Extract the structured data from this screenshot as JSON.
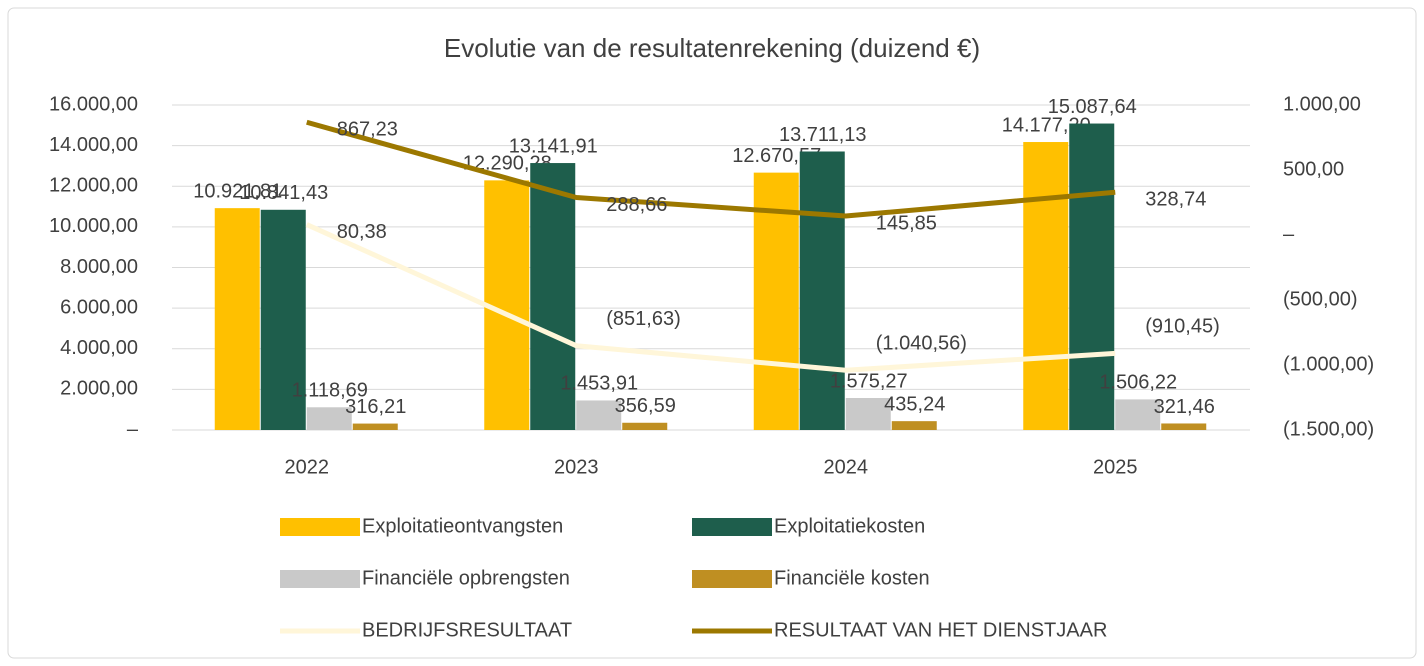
{
  "chart_data": {
    "type": "bar",
    "title": "Evolutie van de resultatenrekening (duizend €)",
    "categories": [
      "2022",
      "2023",
      "2024",
      "2025"
    ],
    "series": [
      {
        "name": "Exploitatieontvangsten",
        "type": "bar",
        "color": "#FFC000",
        "values": [
          10921.81,
          12290.28,
          12670.57,
          14177.2
        ],
        "value_labels": [
          "10.921,81",
          "12.290,28",
          "12.670,57",
          "14.177,20"
        ]
      },
      {
        "name": "Exploitatiekosten",
        "type": "bar",
        "color": "#1E5E4C",
        "values": [
          10841.43,
          13141.91,
          13711.13,
          15087.64
        ],
        "value_labels": [
          "10.841,43",
          "13.141,91",
          "13.711,13",
          "15.087,64"
        ]
      },
      {
        "name": "Financiële opbrengsten",
        "type": "bar",
        "color": "#C9C9C9",
        "values": [
          1118.69,
          1453.91,
          1575.27,
          1506.22
        ],
        "value_labels": [
          "1.118,69",
          "1.453,91",
          "1.575,27",
          "1.506,22"
        ]
      },
      {
        "name": "Financiële kosten",
        "type": "bar",
        "color": "#BF8F22",
        "values": [
          316.21,
          356.59,
          435.24,
          321.46
        ],
        "value_labels": [
          "316,21",
          "356,59",
          "435,24",
          "321,46"
        ]
      },
      {
        "name": "BEDRIJFSRESULTAAT",
        "type": "line",
        "axis": "y2",
        "color": "#FFF6D9",
        "values": [
          80.38,
          -851.63,
          -1040.56,
          -910.45
        ],
        "value_labels": [
          "80,38",
          "(851,63)",
          "(1.040,56)",
          "(910,45)"
        ]
      },
      {
        "name": "RESULTAAT VAN HET DIENSTJAAR",
        "type": "line",
        "axis": "y2",
        "color": "#9C7800",
        "values": [
          867.23,
          288.66,
          145.85,
          328.74
        ],
        "value_labels": [
          "867,23",
          "288,66",
          "145,85",
          "328,74"
        ]
      }
    ],
    "ylim": [
      0,
      16000
    ],
    "yticks": [
      {
        "value": 0,
        "label": "–"
      },
      {
        "value": 2000,
        "label": "2.000,00"
      },
      {
        "value": 4000,
        "label": "4.000,00"
      },
      {
        "value": 6000,
        "label": "6.000,00"
      },
      {
        "value": 8000,
        "label": "8.000,00"
      },
      {
        "value": 10000,
        "label": "10.000,00"
      },
      {
        "value": 12000,
        "label": "12.000,00"
      },
      {
        "value": 14000,
        "label": "14.000,00"
      },
      {
        "value": 16000,
        "label": "16.000,00"
      }
    ],
    "y2lim": [
      -1500,
      1000
    ],
    "y2ticks": [
      {
        "value": -1500,
        "label": "(1.500,00)"
      },
      {
        "value": -1000,
        "label": "(1.000,00)"
      },
      {
        "value": -500,
        "label": "(500,00)"
      },
      {
        "value": 0,
        "label": "–"
      },
      {
        "value": 500,
        "label": "500,00"
      },
      {
        "value": 1000,
        "label": "1.000,00"
      }
    ],
    "grid": true,
    "legend": "bottom"
  }
}
